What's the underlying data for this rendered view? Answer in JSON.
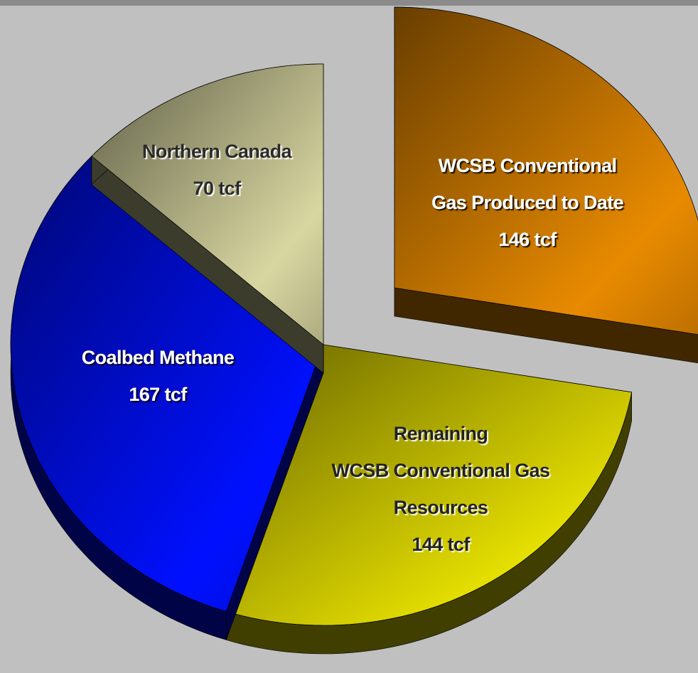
{
  "chart_data": {
    "type": "pie",
    "categories": [
      [
        "WCSB Conventional",
        "Gas Produced to Date"
      ],
      [
        "Remaining",
        "WCSB Conventional Gas",
        "Resources"
      ],
      [
        "Coalbed Methane"
      ],
      [
        "Northern Canada"
      ]
    ],
    "values": [
      146,
      144,
      167,
      70
    ],
    "value_labels": [
      "146 tcf",
      "144 tcf",
      "167 tcf",
      "70 tcf"
    ],
    "colors": [
      "#e88a00",
      "#e6e000",
      "#0010ff",
      "#d8d6a0"
    ],
    "exploded": [
      true,
      false,
      false,
      false
    ]
  }
}
